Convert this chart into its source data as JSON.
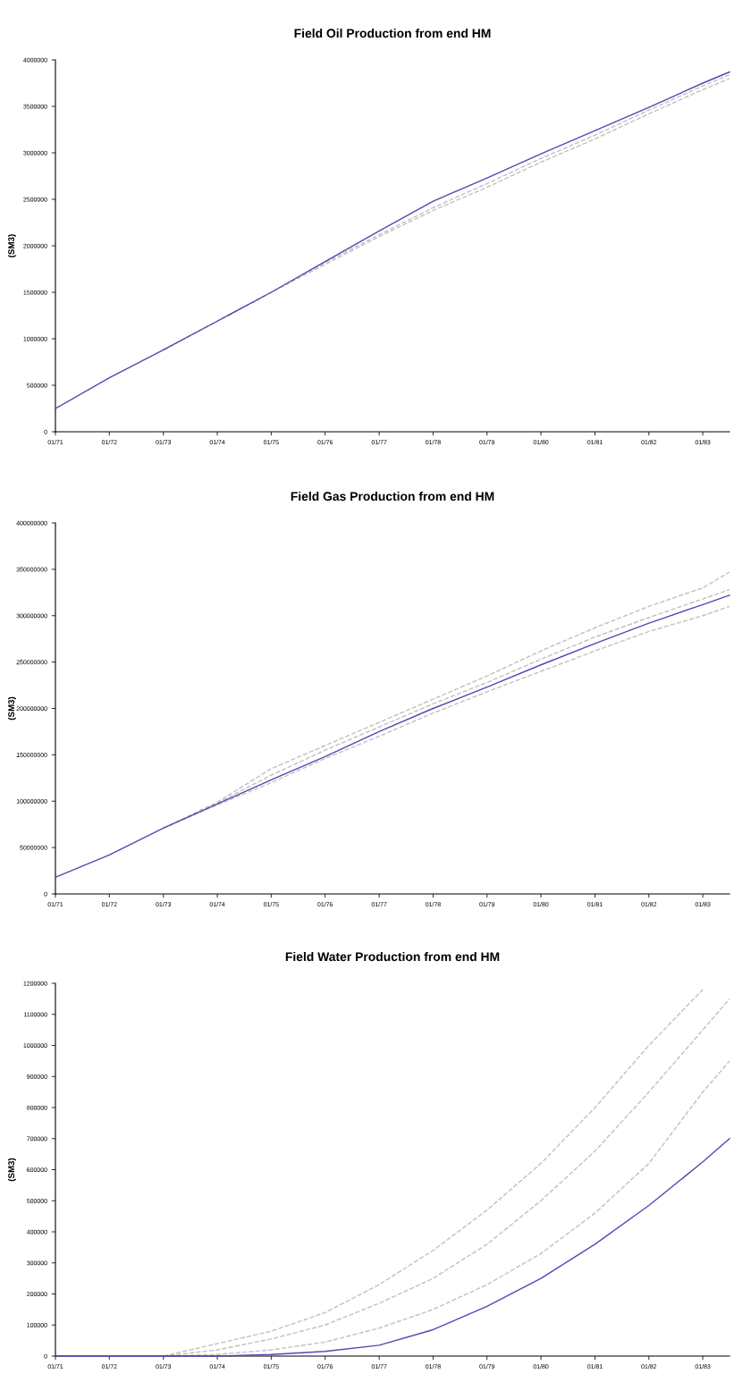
{
  "chart_data": [
    {
      "type": "line",
      "title": "Field Oil Production from end HM",
      "ylabel": "(SM3)",
      "x": [
        "1971-01",
        "1972-01",
        "1973-01",
        "1974-01",
        "1975-01",
        "1976-01",
        "1977-01",
        "1978-01",
        "1979-01",
        "1980-01",
        "1981-01",
        "1982-01",
        "1983-01",
        "1983-07"
      ],
      "xlim": [
        "1971-01",
        "1983-07"
      ],
      "xticks": [
        {
          "value": "1971-01",
          "label": "01/71"
        },
        {
          "value": "1972-01",
          "label": "01/72"
        },
        {
          "value": "1973-01",
          "label": "01/73"
        },
        {
          "value": "1974-01",
          "label": "01/74"
        },
        {
          "value": "1975-01",
          "label": "01/75"
        },
        {
          "value": "1976-01",
          "label": "01/76"
        },
        {
          "value": "1977-01",
          "label": "01/77"
        },
        {
          "value": "1978-01",
          "label": "01/78"
        },
        {
          "value": "1979-01",
          "label": "01/79"
        },
        {
          "value": "1980-01",
          "label": "01/80"
        },
        {
          "value": "1981-01",
          "label": "01/81"
        },
        {
          "value": "1982-01",
          "label": "01/82"
        },
        {
          "value": "1983-01",
          "label": "01/83"
        }
      ],
      "ylim": [
        0,
        4000000
      ],
      "yticks": [
        0,
        500000,
        1000000,
        1500000,
        2000000,
        2500000,
        3000000,
        3500000,
        4000000
      ],
      "series": [
        {
          "color": "#c0c0c0",
          "line_style": "dashed",
          "values": [
            null,
            null,
            880000,
            1190000,
            1500000,
            1800000,
            2100000,
            2380000,
            2630000,
            2900000,
            3150000,
            3420000,
            3680000,
            3800000
          ]
        },
        {
          "color": "#c0c0c0",
          "line_style": "dashed",
          "values": [
            null,
            null,
            880000,
            1190000,
            1500000,
            1820000,
            2120000,
            2410000,
            2670000,
            2940000,
            3190000,
            3460000,
            3720000,
            3840000
          ]
        },
        {
          "color": "#4b4bb5",
          "line_style": "solid",
          "values": [
            250000,
            580000,
            880000,
            1190000,
            1500000,
            1830000,
            2160000,
            2480000,
            2730000,
            2990000,
            3240000,
            3490000,
            3750000,
            3870000
          ]
        }
      ]
    },
    {
      "type": "line",
      "title": "Field Gas Production from end HM",
      "ylabel": "(SM3)",
      "x": [
        "1971-01",
        "1972-01",
        "1973-01",
        "1974-01",
        "1975-01",
        "1976-01",
        "1977-01",
        "1978-01",
        "1979-01",
        "1980-01",
        "1981-01",
        "1982-01",
        "1983-01",
        "1983-07"
      ],
      "xlim": [
        "1971-01",
        "1983-07"
      ],
      "xticks": [
        {
          "value": "1971-01",
          "label": "01/71"
        },
        {
          "value": "1972-01",
          "label": "01/72"
        },
        {
          "value": "1973-01",
          "label": "01/73"
        },
        {
          "value": "1974-01",
          "label": "01/74"
        },
        {
          "value": "1975-01",
          "label": "01/75"
        },
        {
          "value": "1976-01",
          "label": "01/76"
        },
        {
          "value": "1977-01",
          "label": "01/77"
        },
        {
          "value": "1978-01",
          "label": "01/78"
        },
        {
          "value": "1979-01",
          "label": "01/79"
        },
        {
          "value": "1980-01",
          "label": "01/80"
        },
        {
          "value": "1981-01",
          "label": "01/81"
        },
        {
          "value": "1982-01",
          "label": "01/82"
        },
        {
          "value": "1983-01",
          "label": "01/83"
        }
      ],
      "ylim": [
        0,
        400000000
      ],
      "yticks": [
        0,
        50000000,
        100000000,
        150000000,
        200000000,
        250000000,
        300000000,
        350000000,
        400000000
      ],
      "series": [
        {
          "color": "#c0c0c0",
          "line_style": "dashed",
          "values": [
            null,
            null,
            71000000,
            99000000,
            135000000,
            160000000,
            185000000,
            210000000,
            235000000,
            262000000,
            287000000,
            310000000,
            330000000,
            347000000
          ]
        },
        {
          "color": "#c0c0c0",
          "line_style": "dashed",
          "values": [
            null,
            null,
            71000000,
            98000000,
            128000000,
            155000000,
            180000000,
            205000000,
            228000000,
            253000000,
            277000000,
            298000000,
            318000000,
            328000000
          ]
        },
        {
          "color": "#c0c0c0",
          "line_style": "dashed",
          "values": [
            null,
            null,
            71000000,
            96000000,
            120000000,
            146000000,
            170000000,
            195000000,
            218000000,
            240000000,
            262000000,
            283000000,
            300000000,
            310000000
          ]
        },
        {
          "color": "#4b4bb5",
          "line_style": "solid",
          "values": [
            18000000,
            42000000,
            71000000,
            97000000,
            123000000,
            148000000,
            175000000,
            200000000,
            223000000,
            247000000,
            270000000,
            292000000,
            312000000,
            322000000
          ]
        }
      ]
    },
    {
      "type": "line",
      "title": "Field Water Production from end HM",
      "ylabel": "(SM3)",
      "x": [
        "1971-01",
        "1972-01",
        "1973-01",
        "1974-01",
        "1975-01",
        "1976-01",
        "1977-01",
        "1978-01",
        "1979-01",
        "1980-01",
        "1981-01",
        "1982-01",
        "1983-01",
        "1983-07"
      ],
      "xlim": [
        "1971-01",
        "1983-07"
      ],
      "xticks": [
        {
          "value": "1971-01",
          "label": "01/71"
        },
        {
          "value": "1972-01",
          "label": "01/72"
        },
        {
          "value": "1973-01",
          "label": "01/73"
        },
        {
          "value": "1974-01",
          "label": "01/74"
        },
        {
          "value": "1975-01",
          "label": "01/75"
        },
        {
          "value": "1976-01",
          "label": "01/76"
        },
        {
          "value": "1977-01",
          "label": "01/77"
        },
        {
          "value": "1978-01",
          "label": "01/78"
        },
        {
          "value": "1979-01",
          "label": "01/79"
        },
        {
          "value": "1980-01",
          "label": "01/80"
        },
        {
          "value": "1981-01",
          "label": "01/81"
        },
        {
          "value": "1982-01",
          "label": "01/82"
        },
        {
          "value": "1983-01",
          "label": "01/83"
        }
      ],
      "ylim": [
        0,
        1200000
      ],
      "yticks": [
        0,
        100000,
        200000,
        300000,
        400000,
        500000,
        600000,
        700000,
        800000,
        900000,
        1000000,
        1100000,
        1200000
      ],
      "series": [
        {
          "color": "#c0c0c0",
          "line_style": "dashed",
          "values": [
            null,
            null,
            0,
            40000,
            80000,
            140000,
            230000,
            340000,
            470000,
            620000,
            800000,
            1000000,
            1180000,
            null
          ]
        },
        {
          "color": "#c0c0c0",
          "line_style": "dashed",
          "values": [
            null,
            null,
            0,
            20000,
            55000,
            100000,
            170000,
            250000,
            360000,
            500000,
            660000,
            850000,
            1050000,
            1150000
          ]
        },
        {
          "color": "#c0c0c0",
          "line_style": "dashed",
          "values": [
            null,
            null,
            0,
            5000,
            20000,
            45000,
            90000,
            150000,
            230000,
            330000,
            460000,
            620000,
            850000,
            950000
          ]
        },
        {
          "color": "#4b4bb5",
          "line_style": "solid",
          "values": [
            0,
            0,
            0,
            0,
            5000,
            15000,
            35000,
            85000,
            160000,
            250000,
            360000,
            485000,
            625000,
            700000
          ]
        }
      ]
    }
  ]
}
